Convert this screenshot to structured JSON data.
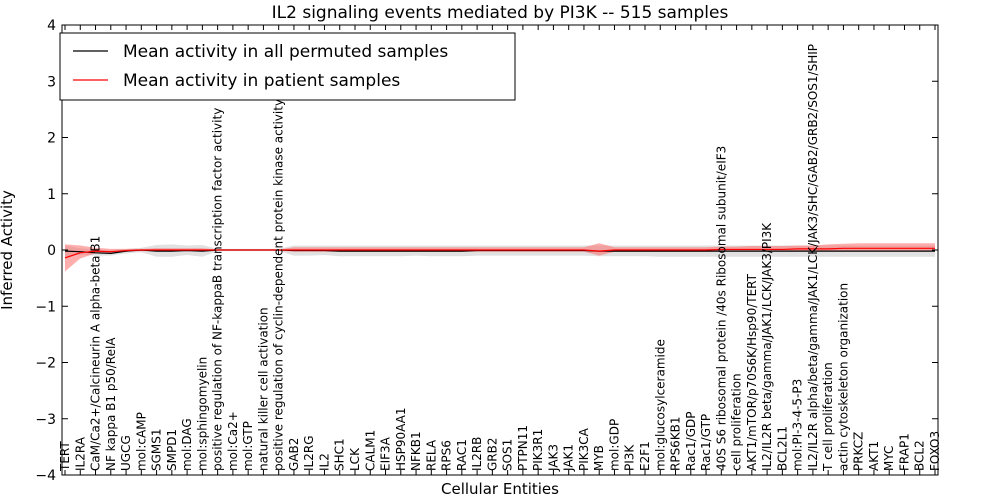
{
  "chart_data": {
    "type": "line",
    "title": "IL2 signaling events mediated by PI3K -- 515 samples",
    "xlabel": "Cellular Entities",
    "ylabel": "Inferred Activity",
    "ylim": [
      -4,
      4
    ],
    "yticks": [
      4,
      3,
      2,
      1,
      0,
      -1,
      -2,
      -3,
      -4
    ],
    "ytick_labels": [
      "4",
      "3",
      "2",
      "1",
      "0",
      "−1",
      "−2",
      "−3",
      "−4"
    ],
    "legend_position": "top-left",
    "categories": [
      "TERT",
      "IL2RA",
      "CaM/Ca2+/Calcineurin A alpha-beta B1",
      "NF kappa B1 p50/RelA",
      "UGCG",
      "mol:cAMP",
      "SGMS1",
      "SMPD1",
      "mol:DAG",
      "mol:sphingomyelin",
      "positive regulation of NF-kappaB transcription factor activity",
      "mol:Ca2+",
      "mol:GTP",
      "natural killer cell activation",
      "positive regulation of cyclin-dependent protein kinase activity",
      "GAB2",
      "IL2RG",
      "IL2",
      "SHC1",
      "LCK",
      "CALM1",
      "EIF3A",
      "HSP90AA1",
      "NFKB1",
      "RELA",
      "RPS6",
      "RAC1",
      "IL2RB",
      "GRB2",
      "SOS1",
      "PTPN11",
      "PIK3R1",
      "JAK3",
      "JAK1",
      "PIK3CA",
      "MYB",
      "mol:GDP",
      "PI3K",
      "E2F1",
      "mol:glucosylceramide",
      "RPS6KB1",
      "Rac1/GDP",
      "Rac1/GTP",
      "40S S6 ribosomal protein /40s Ribosomal subunit/eIF3",
      "cell proliferation",
      "AKT1/mTOR/p70S6K/Hsp90/TERT",
      "IL2/IL2R beta/gamma/JAK1/LCK/JAK3/PI3K",
      "BCL2L1",
      "mol:PI-3-4-5-P3",
      "IL2/IL2R alpha/beta/gamma/JAK1/LCK/JAK3/SHC/GAB2/GRB2/SOS1/SHIP",
      "T cell proliferation",
      "actin cytoskeleton organization",
      "PRKCZ",
      "AKT1",
      "MYC",
      "FRAP1",
      "BCL2",
      "FOXO3"
    ],
    "series": [
      {
        "name": "Mean activity in all permuted samples",
        "color": "#000000",
        "values": [
          -0.02,
          -0.03,
          -0.05,
          -0.06,
          -0.02,
          0.0,
          -0.02,
          -0.02,
          -0.01,
          -0.02,
          0.0,
          0.0,
          0.0,
          0.0,
          0.0,
          -0.01,
          -0.01,
          -0.01,
          -0.02,
          -0.02,
          -0.02,
          -0.02,
          -0.02,
          -0.02,
          -0.02,
          -0.02,
          -0.02,
          -0.01,
          -0.01,
          -0.01,
          -0.01,
          -0.01,
          -0.01,
          -0.01,
          -0.01,
          -0.02,
          -0.02,
          -0.02,
          -0.02,
          -0.02,
          -0.02,
          -0.02,
          -0.02,
          -0.02,
          -0.02,
          -0.02,
          -0.02,
          -0.02,
          -0.02,
          -0.02,
          -0.02,
          -0.02,
          -0.02,
          -0.02,
          -0.02,
          -0.02,
          -0.02,
          -0.02
        ],
        "band_lower": [
          -0.12,
          -0.08,
          -0.1,
          -0.1,
          -0.06,
          -0.04,
          -0.12,
          -0.12,
          -0.09,
          -0.12,
          -0.02,
          -0.02,
          -0.02,
          -0.02,
          -0.02,
          -0.1,
          -0.1,
          -0.09,
          -0.11,
          -0.11,
          -0.11,
          -0.11,
          -0.11,
          -0.1,
          -0.11,
          -0.11,
          -0.11,
          -0.1,
          -0.1,
          -0.1,
          -0.1,
          -0.1,
          -0.1,
          -0.1,
          -0.1,
          -0.11,
          -0.11,
          -0.11,
          -0.11,
          -0.12,
          -0.12,
          -0.12,
          -0.12,
          -0.12,
          -0.12,
          -0.12,
          -0.12,
          -0.12,
          -0.12,
          -0.12,
          -0.12,
          -0.12,
          -0.12,
          -0.12,
          -0.12,
          -0.12,
          -0.12,
          -0.12
        ],
        "band_upper": [
          0.08,
          0.03,
          0.01,
          0.0,
          0.02,
          0.04,
          0.09,
          0.1,
          0.08,
          0.09,
          0.02,
          0.02,
          0.02,
          0.02,
          0.02,
          0.08,
          0.08,
          0.08,
          0.08,
          0.08,
          0.08,
          0.08,
          0.08,
          0.08,
          0.08,
          0.08,
          0.08,
          0.08,
          0.08,
          0.08,
          0.08,
          0.08,
          0.08,
          0.08,
          0.08,
          0.08,
          0.08,
          0.08,
          0.08,
          0.08,
          0.08,
          0.08,
          0.08,
          0.08,
          0.08,
          0.08,
          0.08,
          0.08,
          0.08,
          0.08,
          0.08,
          0.08,
          0.08,
          0.08,
          0.08,
          0.08,
          0.08,
          0.08
        ]
      },
      {
        "name": "Mean activity in patient samples",
        "color": "#ff0000",
        "values": [
          -0.14,
          -0.05,
          -0.02,
          -0.03,
          -0.01,
          0.0,
          0.0,
          0.0,
          0.0,
          0.0,
          0.0,
          0.0,
          0.0,
          0.0,
          0.0,
          0.0,
          0.0,
          0.0,
          0.0,
          0.0,
          0.0,
          0.0,
          0.0,
          0.0,
          0.0,
          0.0,
          0.0,
          0.0,
          0.0,
          0.0,
          0.0,
          0.0,
          0.0,
          0.0,
          0.0,
          -0.02,
          0.0,
          0.0,
          0.0,
          0.0,
          0.0,
          0.0,
          0.0,
          0.01,
          0.01,
          0.01,
          0.01,
          0.01,
          0.02,
          0.02,
          0.02,
          0.03,
          0.03,
          0.03,
          0.03,
          0.03,
          0.03,
          0.03
        ],
        "band_lower": [
          -0.38,
          -0.15,
          -0.06,
          -0.06,
          -0.03,
          -0.02,
          -0.02,
          -0.02,
          -0.02,
          -0.02,
          -0.01,
          -0.01,
          -0.01,
          -0.01,
          -0.01,
          -0.03,
          -0.03,
          -0.03,
          -0.03,
          -0.03,
          -0.03,
          -0.03,
          -0.03,
          -0.03,
          -0.03,
          -0.03,
          -0.03,
          -0.03,
          -0.03,
          -0.03,
          -0.03,
          -0.03,
          -0.03,
          -0.03,
          -0.03,
          -0.1,
          -0.03,
          -0.03,
          -0.03,
          -0.03,
          -0.03,
          -0.03,
          -0.03,
          -0.02,
          -0.02,
          -0.02,
          -0.02,
          -0.02,
          -0.02,
          -0.02,
          -0.02,
          -0.02,
          -0.02,
          -0.02,
          -0.02,
          -0.02,
          -0.02,
          -0.02
        ],
        "band_upper": [
          0.1,
          0.08,
          0.04,
          0.02,
          0.02,
          0.02,
          0.03,
          0.03,
          0.03,
          0.03,
          0.01,
          0.01,
          0.01,
          0.01,
          0.01,
          0.05,
          0.05,
          0.05,
          0.05,
          0.05,
          0.05,
          0.05,
          0.05,
          0.05,
          0.05,
          0.05,
          0.05,
          0.05,
          0.05,
          0.05,
          0.05,
          0.05,
          0.05,
          0.05,
          0.05,
          0.12,
          0.05,
          0.05,
          0.05,
          0.05,
          0.05,
          0.05,
          0.05,
          0.06,
          0.06,
          0.07,
          0.07,
          0.07,
          0.08,
          0.08,
          0.1,
          0.11,
          0.12,
          0.12,
          0.12,
          0.12,
          0.12,
          0.12
        ]
      }
    ],
    "band_colors": {
      "permuted": "#c8c8c8",
      "patient": "#ff6b6b"
    }
  }
}
